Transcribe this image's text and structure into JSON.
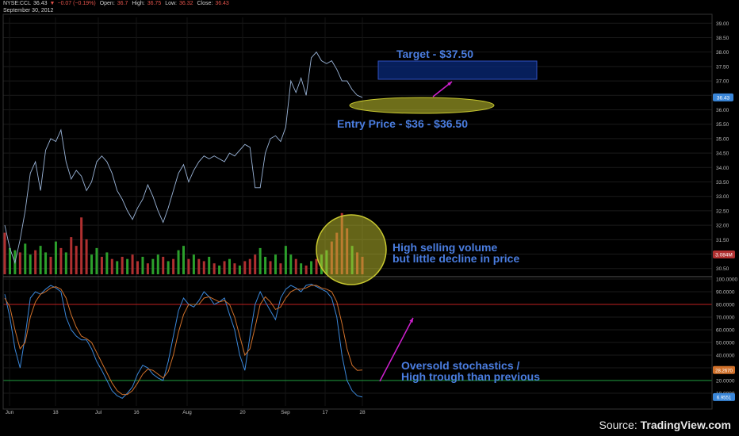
{
  "header": {
    "symbol": "NYSE:CCL",
    "last": "36.43",
    "change": "−0.07 (−0.19%)",
    "open_label": "Open:",
    "open": "36.7",
    "high_label": "High:",
    "high": "36.75",
    "low_label": "Low:",
    "low": "36.32",
    "close_label": "Close:",
    "close": "36.43",
    "date": "September 30, 2012"
  },
  "annotations": {
    "target": "Target - $37.50",
    "entry": "Entry Price - $36 - $36.50",
    "volume_line1": "High selling volume",
    "volume_line2": "but little decline in price",
    "stoch_line1": "Oversold stochastics /",
    "stoch_line2": "High trough than previous"
  },
  "source": {
    "prefix": "Source: ",
    "brand": "TradingView.com"
  },
  "colors": {
    "background": "#000000",
    "price_line": "#9ab4d8",
    "volume_up": "#2ca02c",
    "volume_down": "#b03030",
    "stoch_k": "#3a86d8",
    "stoch_d": "#d0702a",
    "overbought_line": "#c02020",
    "oversold_line": "#20a040",
    "annotation_text": "#4a7de0",
    "arrow": "#d020d0",
    "target_box": "#0a2a7a",
    "ellipse": "#c8c830"
  },
  "chart_data": [
    {
      "type": "line",
      "title": "",
      "x_ticks": [
        "Jun",
        "18",
        "Jul",
        "16",
        "Aug",
        "20",
        "Sep",
        "17",
        "28"
      ],
      "y_ticks": [
        "30.50",
        "31.00",
        "31.50",
        "32.00",
        "32.50",
        "33.00",
        "33.50",
        "34.00",
        "34.50",
        "35.00",
        "35.50",
        "36.00",
        "36.50",
        "37.00",
        "37.50",
        "38.00",
        "38.50",
        "39.00"
      ],
      "ylim": [
        30.3,
        39.2
      ],
      "last_value_label": "36.43",
      "volume_label": "3.084M",
      "series": [
        {
          "values": [
            32.0,
            31.2,
            30.7,
            31.5,
            32.5,
            33.8,
            34.2,
            33.2,
            34.6,
            35.0,
            34.9,
            35.3,
            34.2,
            33.6,
            33.9,
            33.7,
            33.2,
            33.5,
            34.2,
            34.4,
            34.2,
            33.8,
            33.2,
            32.9,
            32.5,
            32.2,
            32.6,
            32.9,
            33.4,
            33.0,
            32.5,
            32.1,
            32.6,
            33.2,
            33.8,
            34.1,
            33.5,
            33.9,
            34.2,
            34.4,
            34.3,
            34.4,
            34.3,
            34.2,
            34.5,
            34.4,
            34.6,
            34.8,
            34.7,
            33.3,
            33.3,
            34.5,
            35.0,
            35.1,
            34.9,
            35.4,
            37.0,
            36.6,
            37.1,
            36.5,
            37.8,
            38.0,
            37.7,
            37.6,
            37.7,
            37.4,
            37.0,
            37.0,
            36.7,
            36.5,
            36.43
          ]
        }
      ],
      "volume": {
        "values": [
          1.9,
          1.2,
          1.1,
          1.0,
          1.4,
          0.9,
          1.1,
          1.3,
          1.0,
          0.8,
          1.5,
          1.2,
          1.0,
          1.7,
          1.3,
          2.6,
          1.6,
          0.9,
          1.2,
          0.8,
          1.0,
          0.7,
          0.6,
          0.8,
          0.7,
          0.9,
          0.6,
          0.8,
          0.5,
          0.7,
          0.9,
          0.8,
          0.6,
          0.7,
          1.1,
          1.3,
          0.7,
          0.9,
          0.7,
          0.6,
          0.8,
          0.5,
          0.4,
          0.6,
          0.7,
          0.5,
          0.4,
          0.6,
          0.7,
          0.9,
          1.2,
          0.8,
          0.6,
          0.9,
          0.5,
          1.3,
          0.9,
          0.7,
          0.5,
          0.4,
          0.6,
          0.7,
          0.9,
          1.1,
          1.5,
          1.9,
          2.8,
          2.1,
          1.3,
          1.0,
          0.8
        ],
        "down": [
          1,
          0,
          0,
          1,
          0,
          0,
          1,
          0,
          0,
          1,
          0,
          1,
          0,
          1,
          1,
          1,
          1,
          0,
          0,
          1,
          0,
          1,
          0,
          1,
          0,
          1,
          1,
          0,
          1,
          0,
          0,
          1,
          0,
          1,
          0,
          0,
          1,
          0,
          1,
          1,
          0,
          1,
          0,
          1,
          0,
          1,
          0,
          1,
          1,
          1,
          0,
          0,
          1,
          0,
          1,
          0,
          0,
          1,
          0,
          1,
          0,
          1,
          0,
          0,
          1,
          1,
          1,
          1,
          0,
          1,
          1
        ]
      }
    },
    {
      "type": "line",
      "title": "",
      "ylim": [
        0,
        100
      ],
      "y_ticks": [
        "10.0000",
        "20.0000",
        "30.0000",
        "40.0000",
        "50.0000",
        "60.0000",
        "70.0000",
        "80.0000",
        "90.0000",
        "100.0000"
      ],
      "overbought": 80,
      "oversold": 20,
      "last_k_label": "6.9551",
      "last_d_label": "28.2670",
      "series": [
        {
          "name": "%K",
          "values": [
            88,
            70,
            45,
            30,
            55,
            85,
            90,
            88,
            92,
            95,
            93,
            90,
            70,
            60,
            55,
            52,
            52,
            45,
            35,
            28,
            20,
            12,
            8,
            6,
            10,
            15,
            25,
            32,
            30,
            25,
            22,
            20,
            35,
            55,
            75,
            85,
            80,
            78,
            83,
            90,
            86,
            80,
            82,
            85,
            72,
            60,
            40,
            28,
            55,
            80,
            90,
            82,
            75,
            68,
            85,
            92,
            95,
            93,
            90,
            95,
            96,
            94,
            92,
            90,
            85,
            70,
            40,
            20,
            12,
            8,
            6.96
          ]
        },
        {
          "name": "%D",
          "values": [
            85,
            78,
            60,
            45,
            50,
            70,
            82,
            88,
            90,
            93,
            94,
            92,
            85,
            72,
            62,
            55,
            53,
            50,
            42,
            34,
            26,
            18,
            12,
            9,
            9,
            12,
            18,
            25,
            29,
            28,
            25,
            22,
            27,
            40,
            58,
            72,
            80,
            80,
            80,
            85,
            86,
            84,
            82,
            83,
            80,
            70,
            55,
            40,
            45,
            62,
            80,
            86,
            82,
            76,
            78,
            85,
            90,
            92,
            92,
            93,
            95,
            95,
            93,
            92,
            90,
            82,
            65,
            45,
            32,
            28,
            28.27
          ]
        }
      ]
    }
  ]
}
